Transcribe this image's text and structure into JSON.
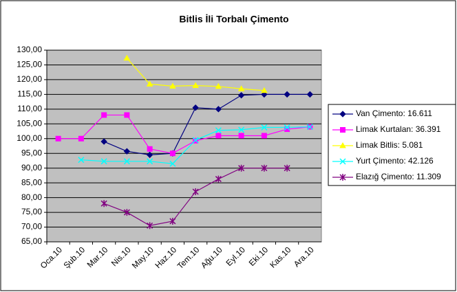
{
  "chart_data": {
    "type": "line",
    "title": "Bitlis İli Torbalı Çimento",
    "categories": [
      "Oca.10",
      "Şub.10",
      "Mar.10",
      "Nis.10",
      "May.10",
      "Haz.10",
      "Tem.10",
      "Ağu.10",
      "Eyl.10",
      "Eki.10",
      "Kas.10",
      "Ara.10"
    ],
    "series": [
      {
        "name": "Van Çimento: 16.611",
        "color": "#000080",
        "marker": "diamond",
        "values": [
          null,
          null,
          99,
          95.7,
          94.5,
          95,
          110.5,
          110,
          114.7,
          115,
          115,
          115
        ]
      },
      {
        "name": "Limak Kurtalan: 36.391",
        "color": "#ff00ff",
        "marker": "square",
        "values": [
          100,
          100,
          108,
          108,
          96.5,
          95,
          99.3,
          101,
          101,
          101,
          103.2,
          104
        ]
      },
      {
        "name": "Limak Bitlis: 5.081",
        "color": "#ffff00",
        "marker": "triangle",
        "values": [
          null,
          null,
          null,
          127.3,
          118.5,
          117.8,
          118,
          117.7,
          116.9,
          116.3,
          null,
          null
        ]
      },
      {
        "name": "Yurt Çimento: 42.126",
        "color": "#00ffff",
        "marker": "x",
        "values": [
          null,
          92.8,
          92.3,
          92.3,
          92.3,
          91.5,
          99.5,
          102.8,
          103,
          103.8,
          103.8,
          104
        ]
      },
      {
        "name": "Elazığ Çimento: 11.309",
        "color": "#800080",
        "marker": "star",
        "values": [
          null,
          null,
          78,
          75,
          70.5,
          72,
          82,
          86.3,
          90,
          90,
          90,
          null
        ]
      }
    ],
    "ylim": [
      65,
      130
    ],
    "yticks": [
      {
        "value": 65,
        "label": "65,00"
      },
      {
        "value": 70,
        "label": "70,00"
      },
      {
        "value": 75,
        "label": "75,00"
      },
      {
        "value": 80,
        "label": "80,00"
      },
      {
        "value": 85,
        "label": "85,00"
      },
      {
        "value": 90,
        "label": "90,00"
      },
      {
        "value": 95,
        "label": "95,00"
      },
      {
        "value": 100,
        "label": "100,00"
      },
      {
        "value": 105,
        "label": "105,00"
      },
      {
        "value": 110,
        "label": "110,00"
      },
      {
        "value": 115,
        "label": "115,00"
      },
      {
        "value": 120,
        "label": "120,00"
      },
      {
        "value": 125,
        "label": "125,00"
      },
      {
        "value": 130,
        "label": "130,00"
      }
    ],
    "grid": true,
    "legend": "right"
  }
}
